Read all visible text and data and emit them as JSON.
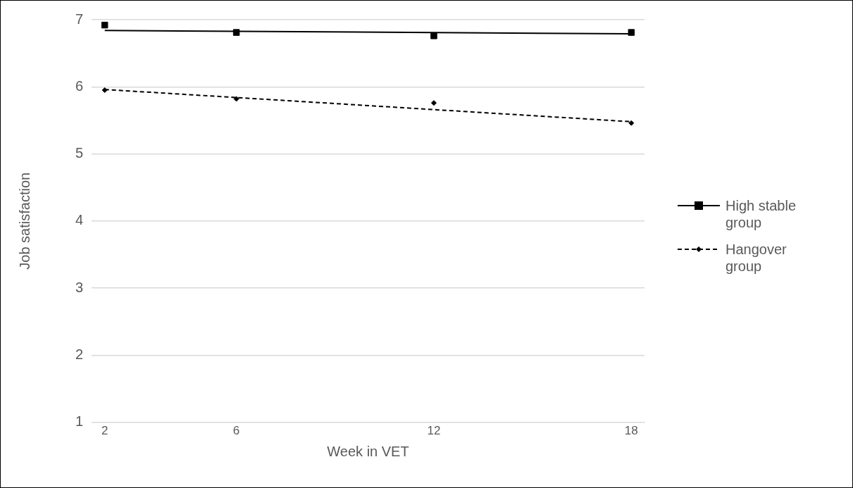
{
  "chart_data": {
    "type": "scatter",
    "xlabel": "Week in VET",
    "ylabel": "Job satisfaction",
    "xlim": [
      1.6,
      18.4
    ],
    "xticks": [
      2,
      6,
      12,
      18
    ],
    "ylim": [
      1,
      7
    ],
    "yticks": [
      1,
      2,
      3,
      4,
      5,
      6,
      7
    ],
    "grid": "y",
    "legend": "right",
    "series": [
      {
        "name": "High stable group",
        "marker": "square",
        "color": "#000000",
        "x": [
          2,
          6,
          12,
          18
        ],
        "values": [
          6.92,
          6.81,
          6.76,
          6.81
        ]
      },
      {
        "type": "line",
        "marker": "none",
        "line_style": "solid",
        "color": "#000000",
        "x": [
          2,
          18
        ],
        "values": [
          6.84,
          6.79
        ]
      },
      {
        "name": "Hangover group",
        "marker": "diamond",
        "color": "#000000",
        "x": [
          2,
          6,
          12,
          18
        ],
        "values": [
          5.95,
          5.82,
          5.76,
          5.46
        ]
      },
      {
        "type": "line",
        "marker": "none",
        "line_style": "dashed",
        "color": "#000000",
        "x": [
          2,
          18
        ],
        "values": [
          5.96,
          5.48
        ]
      }
    ]
  }
}
